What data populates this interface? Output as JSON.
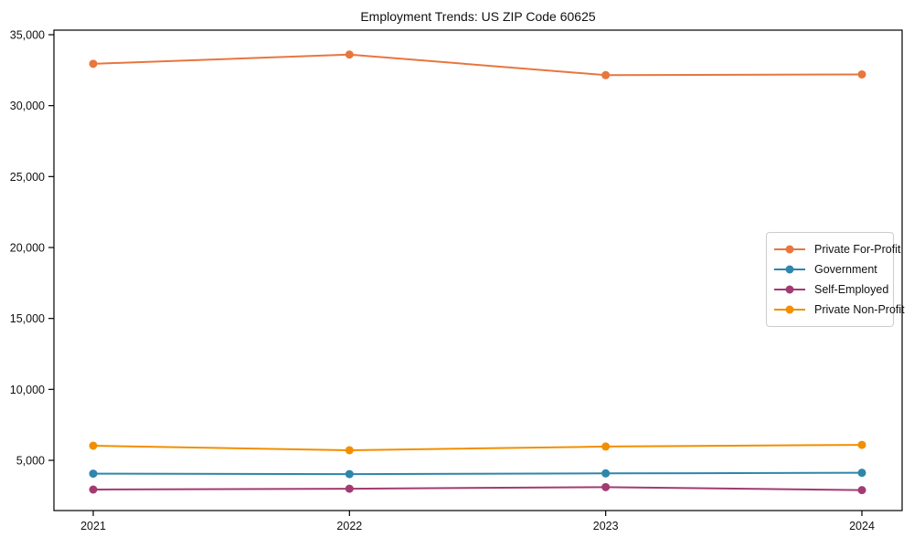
{
  "chart_data": {
    "type": "line",
    "title": "Employment Trends: US ZIP Code 60625",
    "xlabel": "",
    "ylabel": "",
    "categories": [
      "2021",
      "2022",
      "2023",
      "2024"
    ],
    "series": [
      {
        "name": "Private For-Profit",
        "color": "#E8763E",
        "values": [
          32950,
          33600,
          32150,
          32200
        ]
      },
      {
        "name": "Government",
        "color": "#2E86AB",
        "values": [
          4060,
          4030,
          4080,
          4120
        ]
      },
      {
        "name": "Self-Employed",
        "color": "#A23B72",
        "values": [
          2940,
          3000,
          3110,
          2900
        ]
      },
      {
        "name": "Private Non-Profit",
        "color": "#F18F01",
        "values": [
          6030,
          5710,
          5970,
          6090
        ]
      }
    ],
    "yticks": [
      5000,
      10000,
      15000,
      20000,
      25000,
      30000,
      35000
    ],
    "ytick_labels": [
      "5,000",
      "10,000",
      "15,000",
      "20,000",
      "25,000",
      "30,000",
      "35,000"
    ],
    "ylim": [
      1460,
      35320
    ],
    "grid": false,
    "legend_position": "center-right",
    "marker": "circle",
    "line_width": 2,
    "marker_radius": 4.5,
    "frame_color": "#000000",
    "background_color": "#ffffff"
  }
}
